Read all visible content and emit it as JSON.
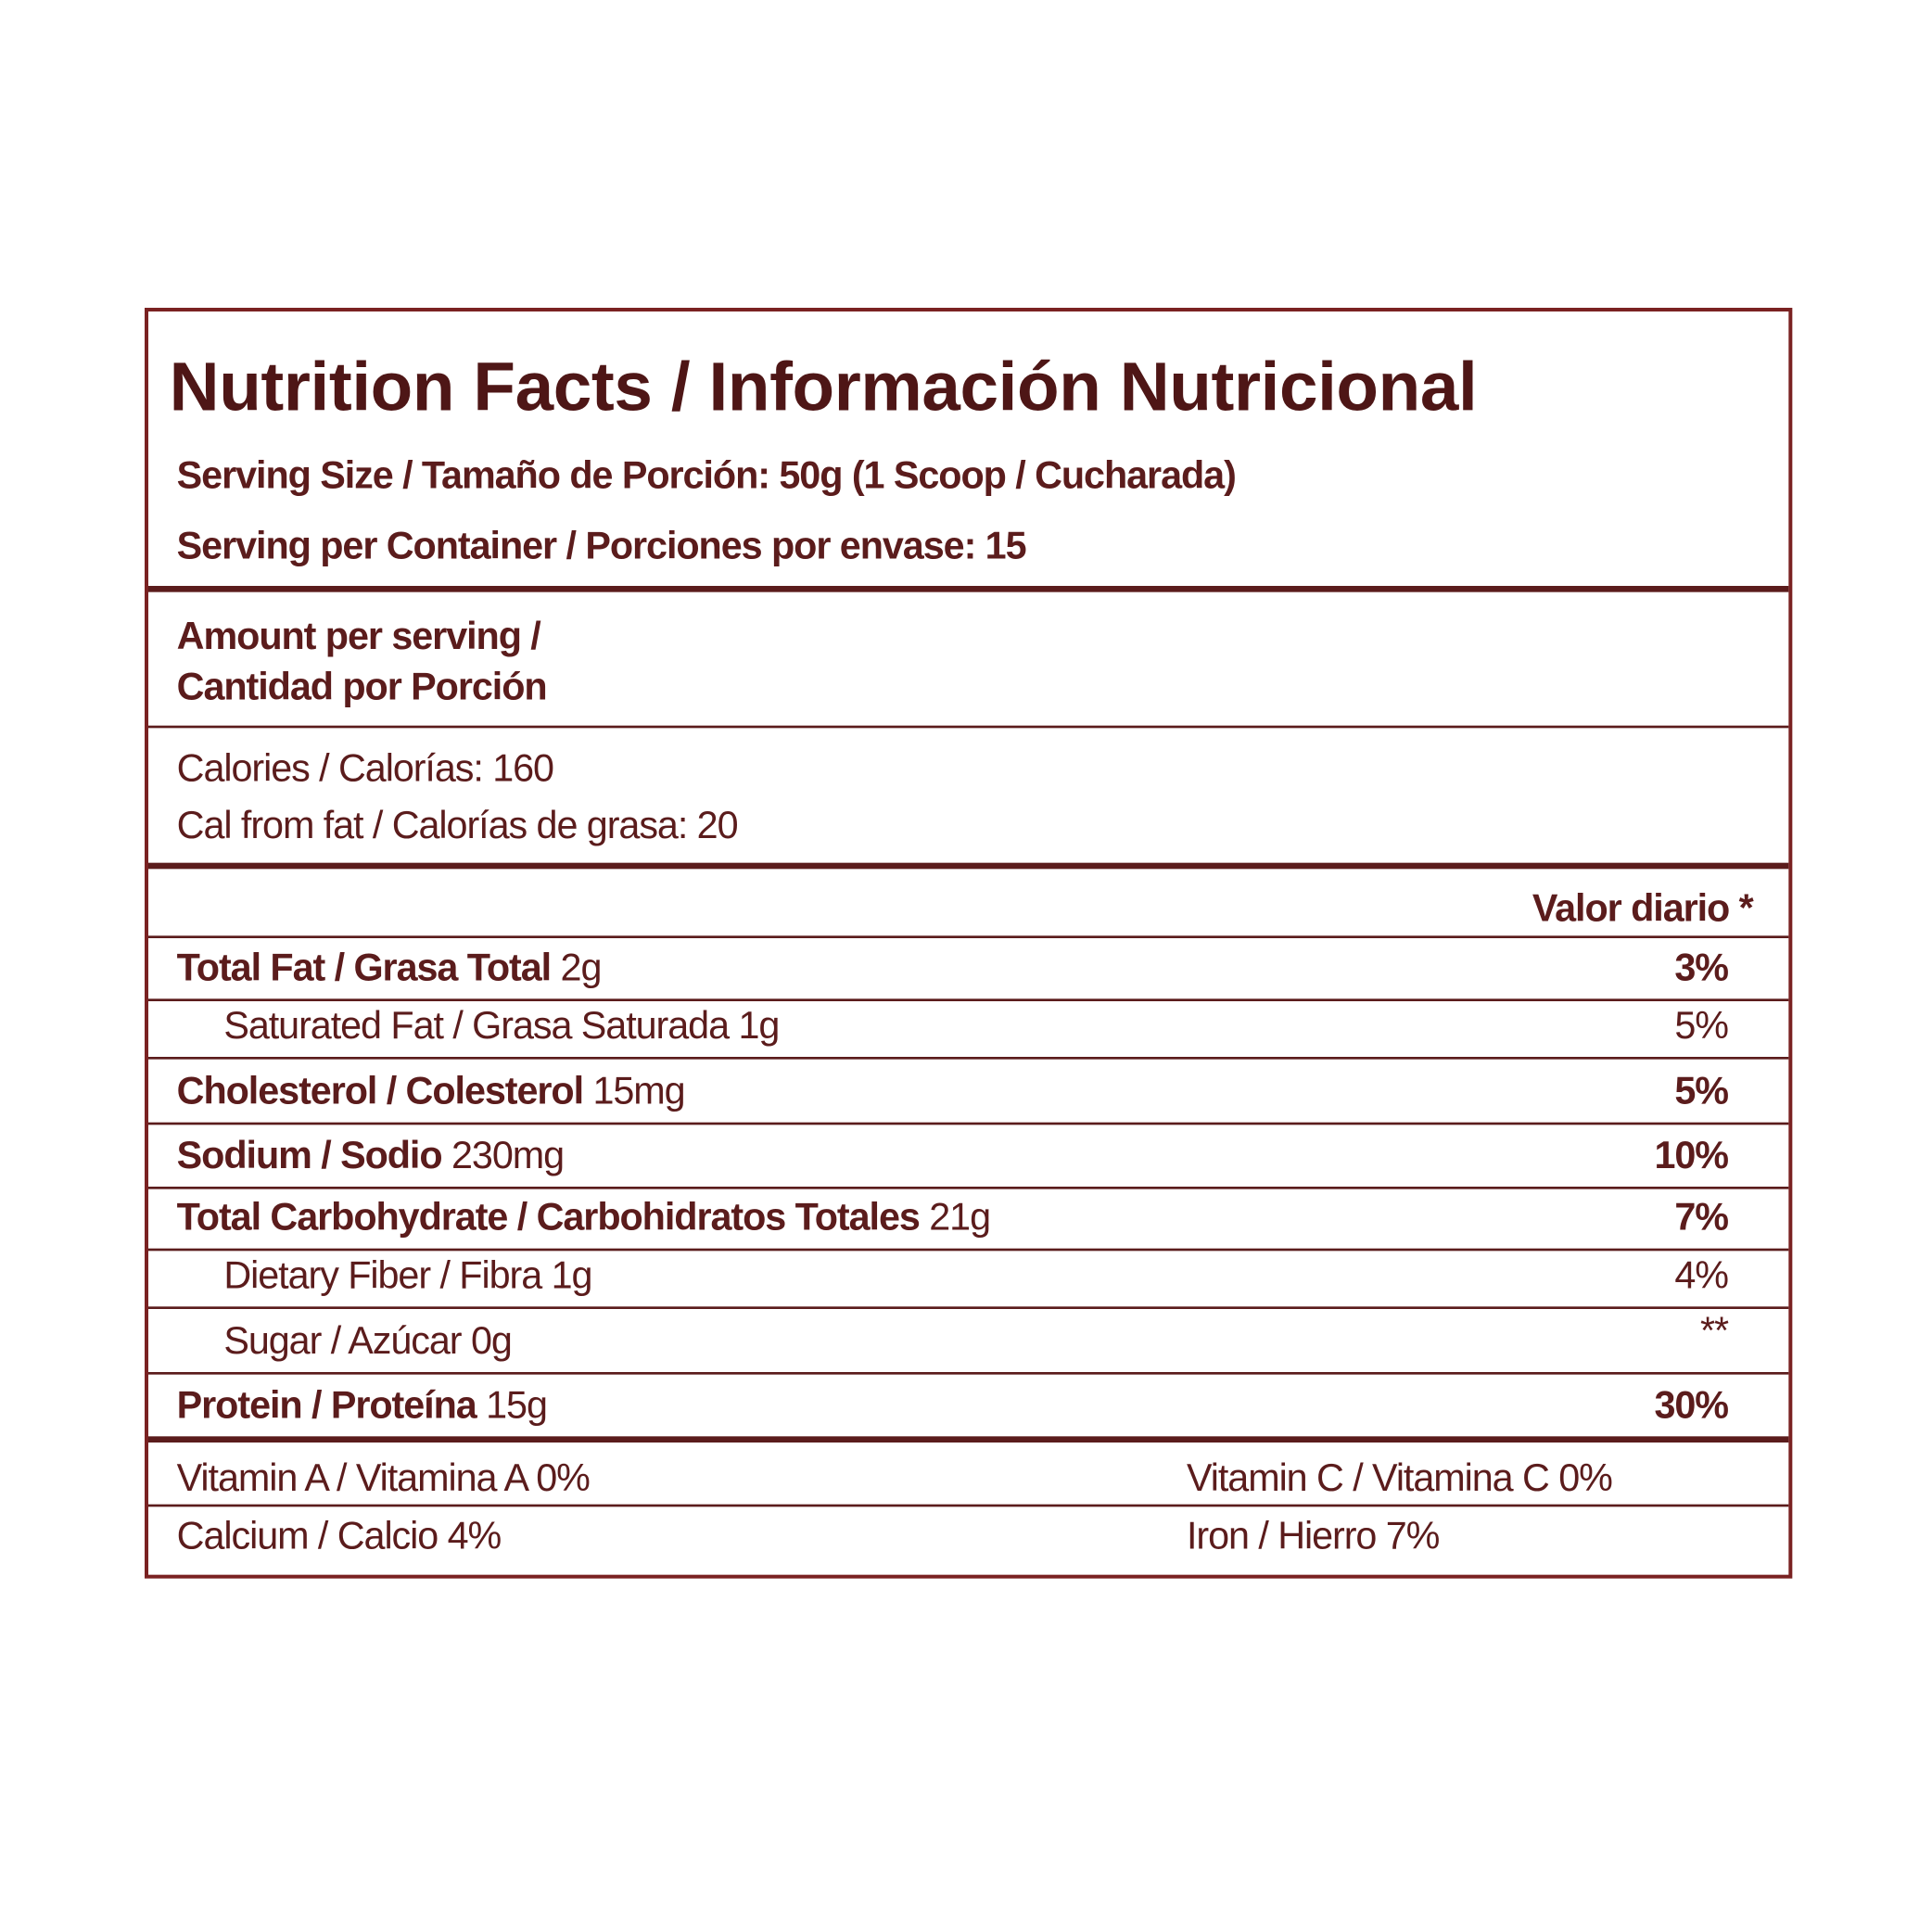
{
  "title": "Nutrition Facts / Información Nutricional",
  "serving_size": "Serving Size / Tamaño de Porción: 50g (1 Scoop / Cucharada)",
  "servings_per_container": "Serving per Container / Porciones por envase: 15",
  "amount_header": [
    "Amount per serving /",
    "Cantidad por Porción"
  ],
  "calories": "Calories / Calorías: 160",
  "calories_from_fat": "Cal from fat / Calorías de grasa: 20",
  "daily_value_header": "Valor diario *",
  "nutrients": [
    {
      "name": "Total Fat / Grasa Total",
      "amount": "2g",
      "daily_value": "3%",
      "bold": true
    },
    {
      "name": "Saturated Fat / Grasa Saturada",
      "amount": "1g",
      "daily_value": "5%",
      "bold": false
    },
    {
      "name": "Cholesterol / Colesterol",
      "amount": "15mg",
      "daily_value": "5%",
      "bold": true
    },
    {
      "name": "Sodium / Sodio",
      "amount": "230mg",
      "daily_value": "10%",
      "bold": true
    },
    {
      "name": "Total Carbohydrate / Carbohidratos Totales",
      "amount": "21g",
      "daily_value": "7%",
      "bold": true
    },
    {
      "name": "Dietary Fiber / Fibra",
      "amount": "1g",
      "daily_value": "4%",
      "bold": false
    },
    {
      "name": "Sugar / Azúcar",
      "amount": "0g",
      "daily_value": "**",
      "bold": false
    },
    {
      "name": "Protein / Proteína",
      "amount": "15g",
      "daily_value": "30%",
      "bold": true
    }
  ],
  "vitamins": [
    [
      "Vitamin A / Vitamina A 0%",
      "Vitamin C / Vitamina C 0%"
    ],
    [
      "Calcium / Calcio 4%",
      "Iron / Hierro 7%"
    ]
  ]
}
